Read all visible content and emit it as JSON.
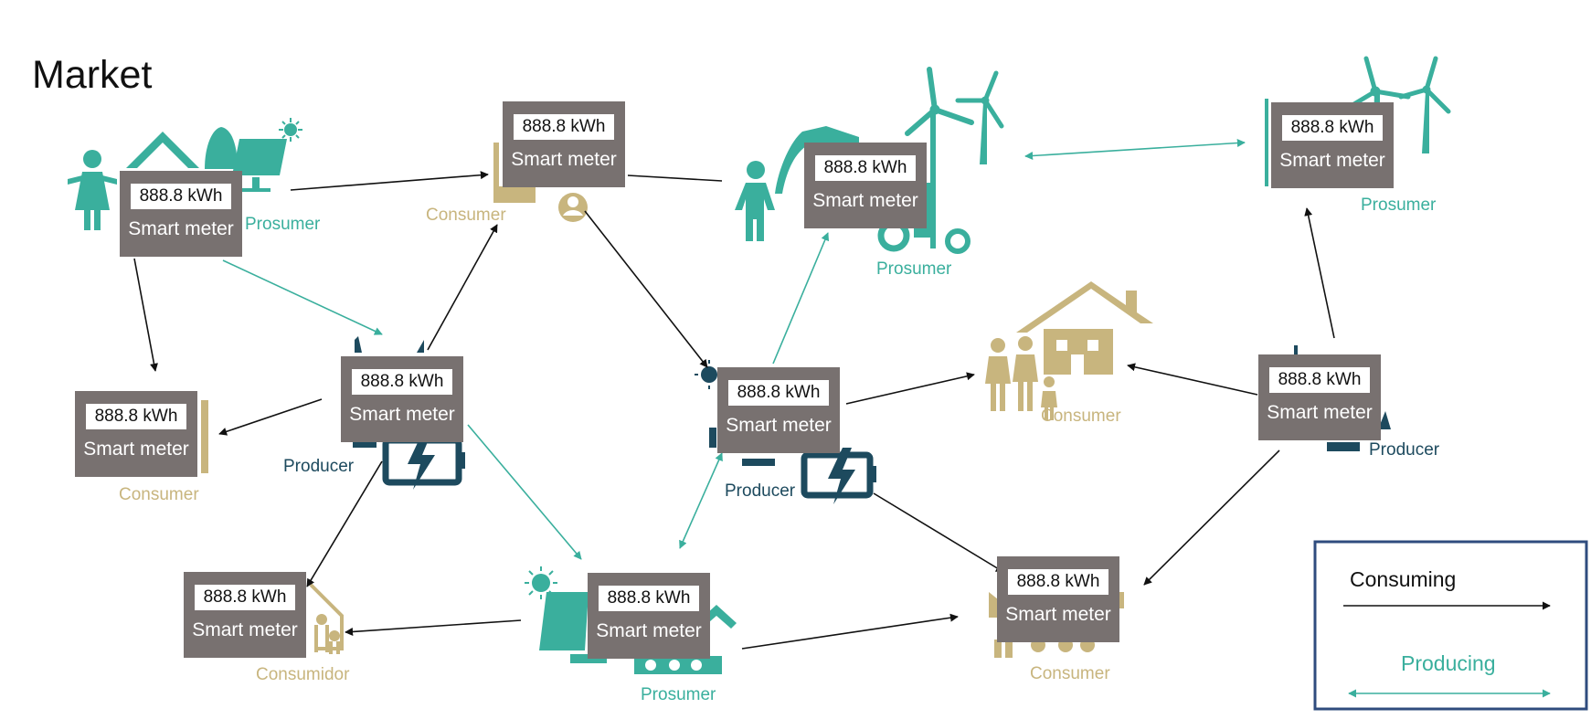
{
  "title": "Market",
  "meter": {
    "reading": "888.8 kWh",
    "label": "Smart meter"
  },
  "roles": {
    "prosumer_1": "Prosumer",
    "consumer_1": "Consumer",
    "prosumer_2": "Prosumer",
    "prosumer_3": "Prosumer",
    "consumer_2": "Consumer",
    "producer_1": "Producer",
    "producer_2": "Producer",
    "consumer_3": "Consumer",
    "producer_3": "Producer",
    "consumidor": "Consumidor",
    "prosumer_4": "Prosumer",
    "consumer_4": "Consumer"
  },
  "legend": {
    "consuming": "Consuming",
    "producing": "Producing"
  },
  "colors": {
    "teal": "#3AAF9D",
    "gold": "#C8B57E",
    "navy": "#1D4A5E",
    "meter": "#787170",
    "legend_border": "#2F4C7E"
  }
}
